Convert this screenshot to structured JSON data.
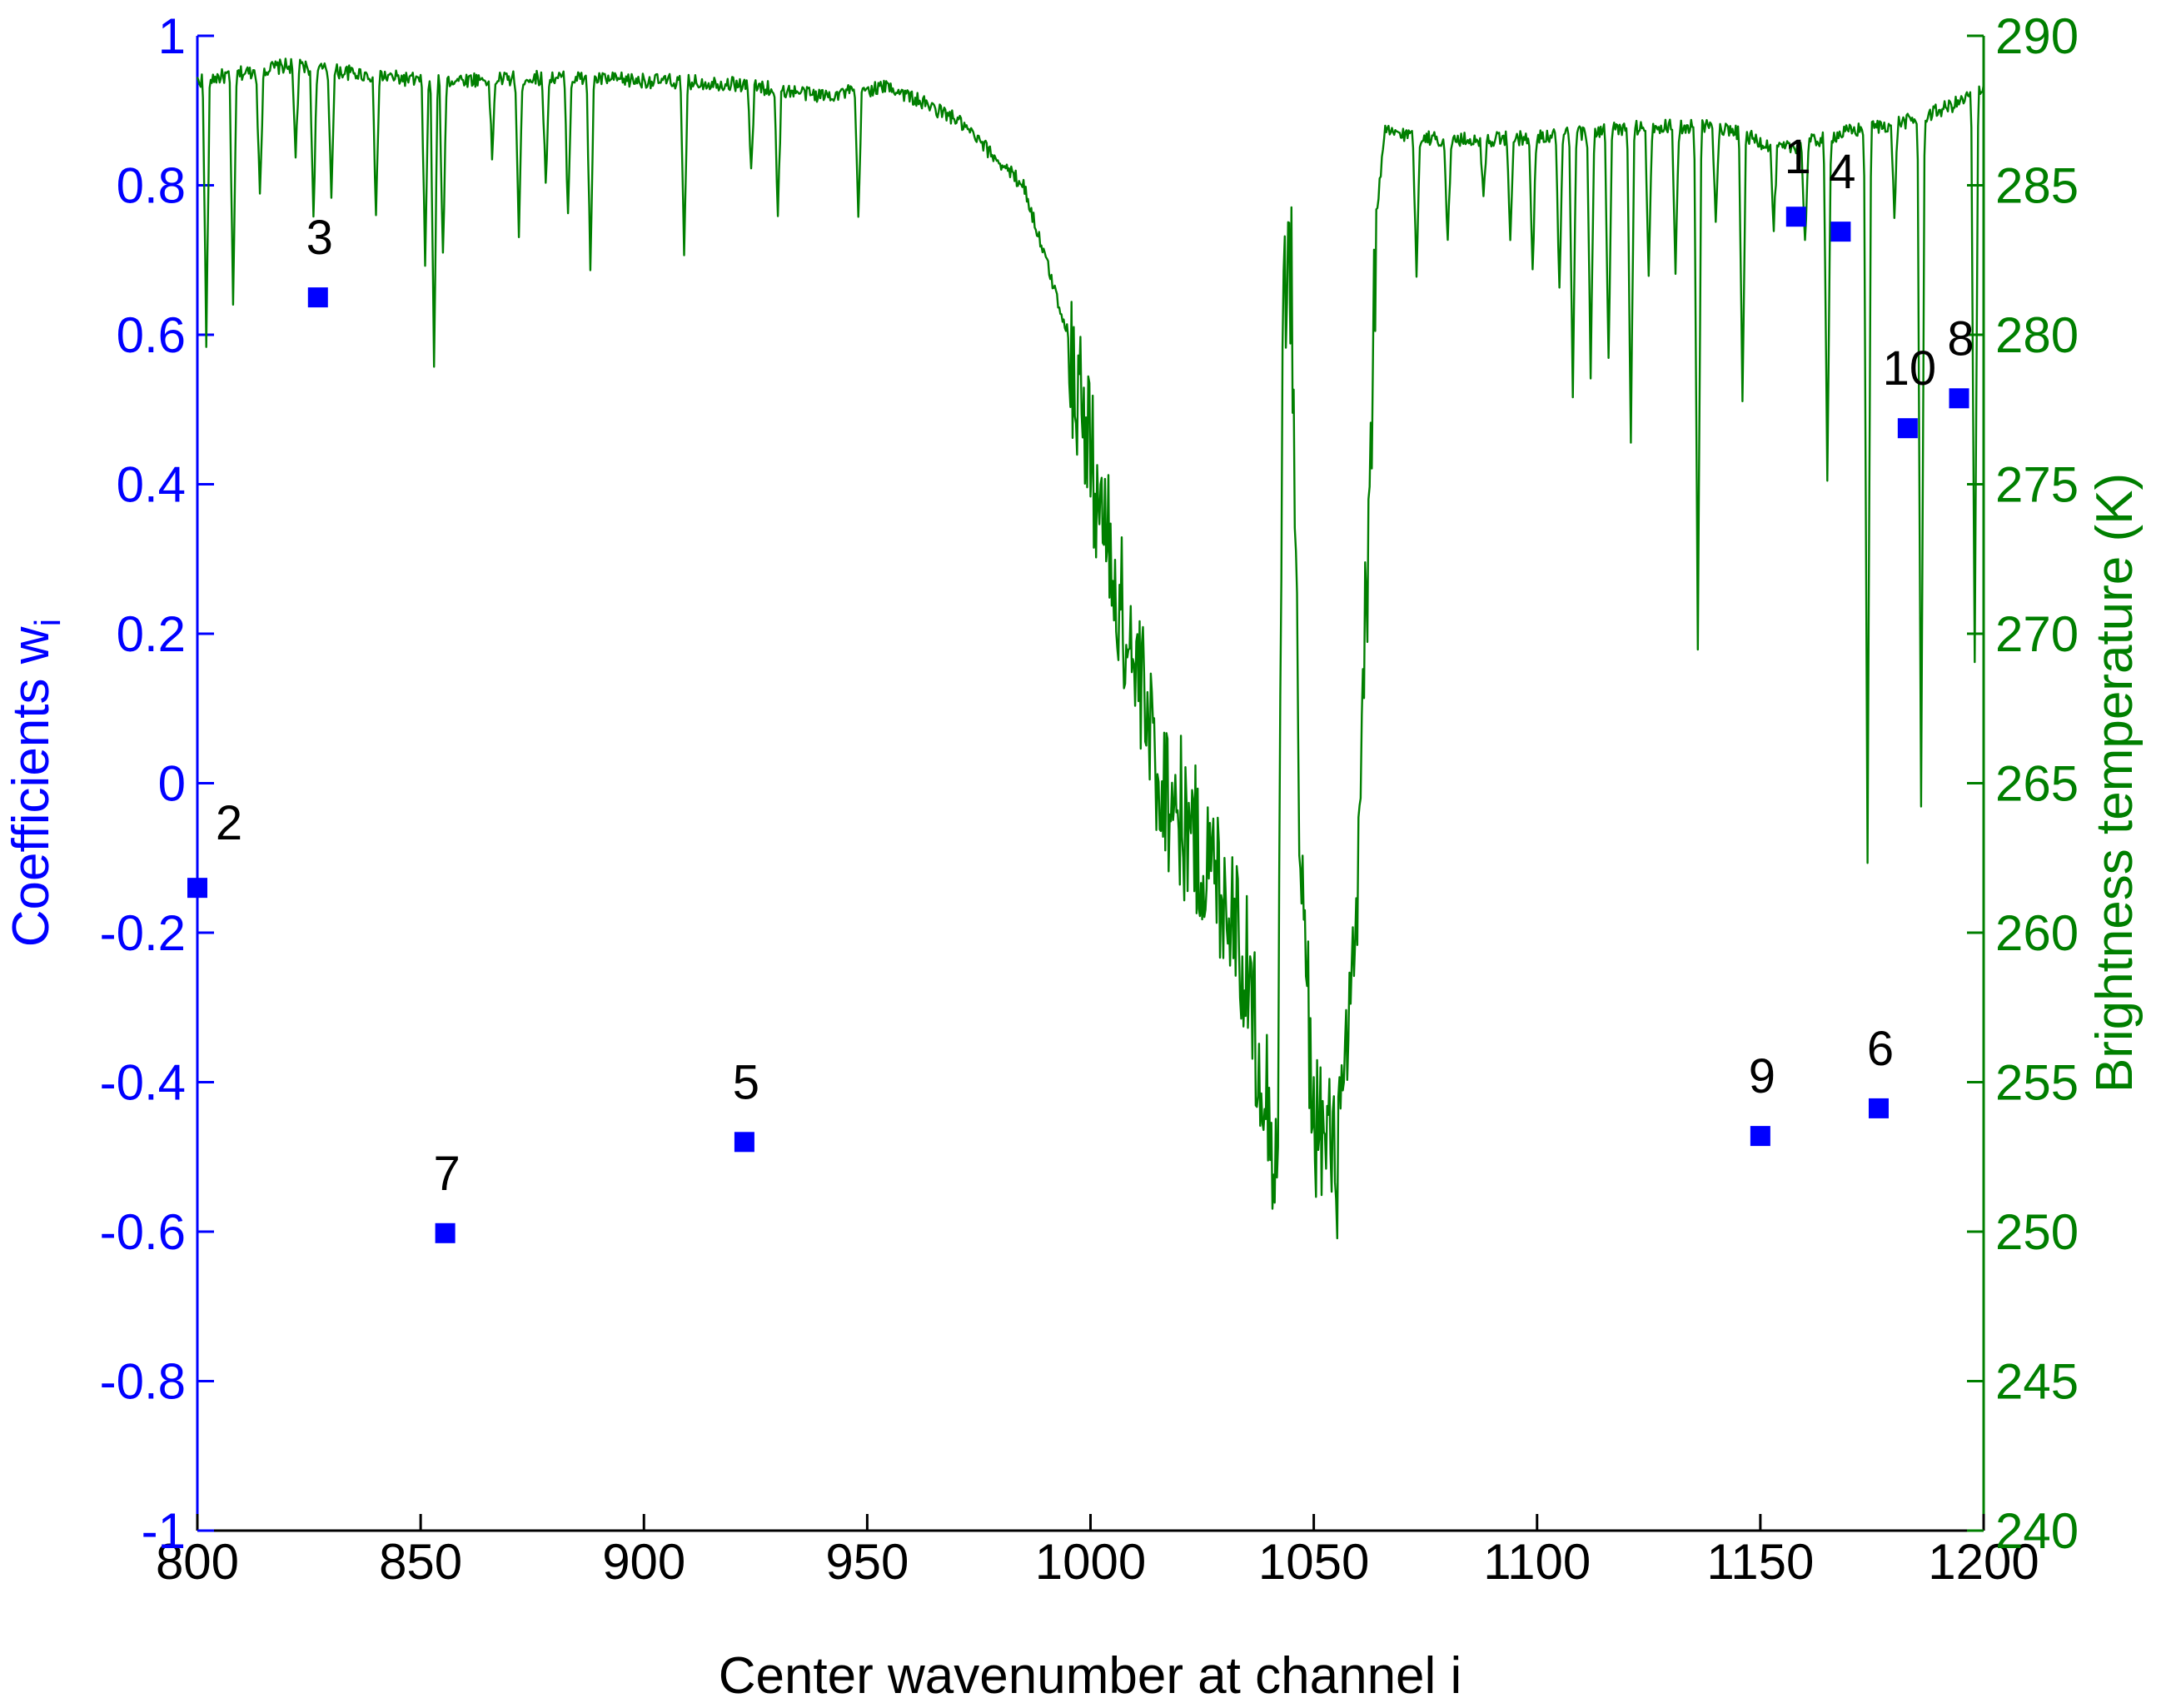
{
  "chart_data": {
    "type": "scatter",
    "xlabel": "Center wavenumber at channel i",
    "ylabel_left": "Coefficients w",
    "ylabel_left_subscript": "i",
    "ylabel_right": "Brightness temperature (K)",
    "xlim": [
      800,
      1200
    ],
    "ylim_left": [
      -1,
      1
    ],
    "ylim_right": [
      240,
      290
    ],
    "x_ticks": [
      "800",
      "850",
      "900",
      "950",
      "1000",
      "1050",
      "1100",
      "1150",
      "1200"
    ],
    "y_left_ticks": [
      "-1",
      "-0.8",
      "-0.6",
      "-0.4",
      "-0.2",
      "0",
      "0.2",
      "0.4",
      "0.6",
      "0.8",
      "1"
    ],
    "y_right_ticks": [
      "240",
      "245",
      "250",
      "255",
      "260",
      "265",
      "270",
      "275",
      "280",
      "285",
      "290"
    ],
    "colors": {
      "left_axis": "#0000ff",
      "right_axis": "#007f00",
      "markers": "#0000ff",
      "spectrum": "#007f00"
    },
    "coefficients": [
      {
        "label": "1",
        "x": 1158,
        "y": 0.758
      },
      {
        "label": "2",
        "x": 800,
        "y": -0.14
      },
      {
        "label": "3",
        "x": 827,
        "y": 0.65
      },
      {
        "label": "4",
        "x": 1168,
        "y": 0.738
      },
      {
        "label": "5",
        "x": 922.5,
        "y": -0.48
      },
      {
        "label": "6",
        "x": 1176.5,
        "y": -0.435
      },
      {
        "label": "7",
        "x": 855.5,
        "y": -0.602
      },
      {
        "label": "8",
        "x": 1194.5,
        "y": 0.515
      },
      {
        "label": "9",
        "x": 1150,
        "y": -0.472
      },
      {
        "label": "10",
        "x": 1183,
        "y": 0.475
      }
    ],
    "spectrum": {
      "name": "Brightness temperature (K)",
      "baseline": [
        [
          800,
          288.5
        ],
        [
          820,
          289.0
        ],
        [
          850,
          288.5
        ],
        [
          880,
          288.6
        ],
        [
          920,
          288.4
        ],
        [
          940,
          288.0
        ],
        [
          955,
          288.3
        ],
        [
          970,
          287.2
        ],
        [
          985,
          285.0
        ],
        [
          995,
          280.0
        ],
        [
          1005,
          272.0
        ],
        [
          1015,
          265.5
        ],
        [
          1025,
          262.5
        ],
        [
          1032,
          261.0
        ],
        [
          1038,
          256.0
        ],
        [
          1042,
          252.0
        ],
        [
          1043,
          281.5
        ],
        [
          1045,
          282.0
        ],
        [
          1047,
          262.0
        ],
        [
          1050,
          254.0
        ],
        [
          1055,
          252.0
        ],
        [
          1059,
          258.0
        ],
        [
          1062,
          272.0
        ],
        [
          1064,
          284.0
        ],
        [
          1066,
          286.8
        ],
        [
          1080,
          286.5
        ],
        [
          1100,
          286.6
        ],
        [
          1120,
          286.9
        ],
        [
          1140,
          287.0
        ],
        [
          1155,
          286.2
        ],
        [
          1170,
          286.8
        ],
        [
          1185,
          287.2
        ],
        [
          1195,
          287.8
        ],
        [
          1200,
          288.3
        ]
      ],
      "lines": [
        [
          802,
          279.8
        ],
        [
          808,
          281.0
        ],
        [
          814,
          284.5
        ],
        [
          822,
          286.0
        ],
        [
          826,
          284.0
        ],
        [
          830,
          284.8
        ],
        [
          840,
          284.0
        ],
        [
          851,
          282.5
        ],
        [
          853,
          279.0
        ],
        [
          855,
          282.5
        ],
        [
          866,
          286.0
        ],
        [
          872,
          283.2
        ],
        [
          878,
          285.0
        ],
        [
          883,
          284.0
        ],
        [
          888,
          282.0
        ],
        [
          909,
          282.5
        ],
        [
          924,
          285.5
        ],
        [
          930,
          284.0
        ],
        [
          948,
          283.8
        ],
        [
          1073,
          282.0
        ],
        [
          1080,
          283.0
        ],
        [
          1088,
          284.5
        ],
        [
          1094,
          283.0
        ],
        [
          1099,
          282.0
        ],
        [
          1105,
          281.5
        ],
        [
          1108,
          278.0
        ],
        [
          1112,
          278.5
        ],
        [
          1116,
          279.0
        ],
        [
          1121,
          276.5
        ],
        [
          1125,
          282.0
        ],
        [
          1131,
          282.0
        ],
        [
          1136,
          269.5
        ],
        [
          1140,
          284.0
        ],
        [
          1146,
          278.0
        ],
        [
          1153,
          283.5
        ],
        [
          1160,
          283.0
        ],
        [
          1165,
          275.0
        ],
        [
          1174,
          262.5
        ],
        [
          1180,
          284.0
        ],
        [
          1186,
          264.0
        ],
        [
          1198,
          269.0
        ]
      ]
    }
  }
}
